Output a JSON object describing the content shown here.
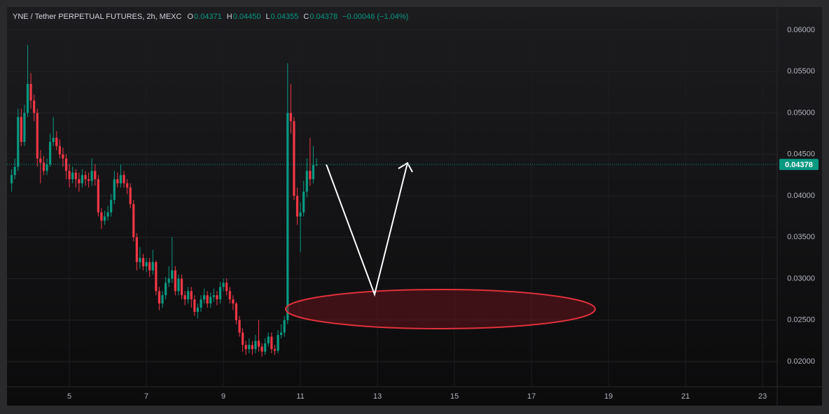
{
  "chart_data": {
    "type": "candlestick",
    "header": {
      "symbol": "YNE / Tether PERPETUAL FUTURES, 2h, MEXC",
      "fields": [
        {
          "key": "O",
          "text": "0.04371"
        },
        {
          "key": "H",
          "text": "0.04450"
        },
        {
          "key": "L",
          "text": "0.04355"
        },
        {
          "key": "C",
          "text": "0.04378"
        }
      ],
      "change": "−0.00046 (−1.04%)"
    },
    "up_color": "#089981",
    "down_color": "#f23645",
    "grid": true,
    "last_price": {
      "value": 0.04378,
      "label": "0.04378"
    },
    "xlim": [
      3.38,
      23.38
    ],
    "xticks": [
      5,
      7,
      9,
      11,
      13,
      15,
      17,
      19,
      21,
      23
    ],
    "ylim": [
      0.01696,
      0.06278
    ],
    "yticks": [
      {
        "value": 0.02,
        "label": "0.02000"
      },
      {
        "value": 0.025,
        "label": "0.02500"
      },
      {
        "value": 0.03,
        "label": "0.03000"
      },
      {
        "value": 0.035,
        "label": "0.03500"
      },
      {
        "value": 0.04,
        "label": "0.04000"
      },
      {
        "value": 0.045,
        "label": "0.04500"
      },
      {
        "value": 0.05,
        "label": "0.05000"
      },
      {
        "value": 0.055,
        "label": "0.05500"
      },
      {
        "value": 0.06,
        "label": "0.06000"
      }
    ],
    "x": [
      3.5,
      3.583,
      3.667,
      3.75,
      3.833,
      3.917,
      4,
      4.083,
      4.167,
      4.25,
      4.333,
      4.417,
      4.5,
      4.583,
      4.667,
      4.75,
      4.833,
      4.917,
      5,
      5.083,
      5.167,
      5.25,
      5.333,
      5.417,
      5.5,
      5.583,
      5.667,
      5.75,
      5.833,
      5.917,
      6,
      6.083,
      6.167,
      6.25,
      6.333,
      6.417,
      6.5,
      6.583,
      6.667,
      6.75,
      6.833,
      6.917,
      7,
      7.083,
      7.167,
      7.25,
      7.333,
      7.417,
      7.5,
      7.583,
      7.667,
      7.75,
      7.833,
      7.917,
      8,
      8.083,
      8.167,
      8.25,
      8.333,
      8.417,
      8.5,
      8.583,
      8.667,
      8.75,
      8.833,
      8.917,
      9,
      9.083,
      9.167,
      9.25,
      9.333,
      9.417,
      9.5,
      9.583,
      9.667,
      9.75,
      9.833,
      9.917,
      10,
      10.083,
      10.167,
      10.25,
      10.333,
      10.417,
      10.5,
      10.583,
      10.667,
      10.75,
      10.833,
      10.917,
      11,
      11.083,
      11.167,
      11.25,
      11.333,
      11.417
    ],
    "open": [
      0.0415,
      0.0425,
      0.0435,
      0.0495,
      0.0465,
      0.05,
      0.0535,
      0.0515,
      0.05,
      0.0445,
      0.044,
      0.043,
      0.0438,
      0.0465,
      0.047,
      0.046,
      0.045,
      0.0445,
      0.043,
      0.042,
      0.0428,
      0.042,
      0.0415,
      0.0425,
      0.042,
      0.0418,
      0.043,
      0.042,
      0.038,
      0.037,
      0.0375,
      0.038,
      0.0395,
      0.042,
      0.0415,
      0.0425,
      0.0415,
      0.041,
      0.039,
      0.035,
      0.032,
      0.0325,
      0.0315,
      0.032,
      0.031,
      0.032,
      0.0285,
      0.027,
      0.028,
      0.0295,
      0.03,
      0.031,
      0.0285,
      0.03,
      0.028,
      0.0275,
      0.0285,
      0.0275,
      0.026,
      0.0265,
      0.0275,
      0.028,
      0.027,
      0.0278,
      0.028,
      0.0275,
      0.029,
      0.0295,
      0.0285,
      0.0275,
      0.027,
      0.025,
      0.0235,
      0.022,
      0.0215,
      0.022,
      0.0215,
      0.0225,
      0.0218,
      0.0212,
      0.0222,
      0.023,
      0.0215,
      0.0213,
      0.0232,
      0.0235,
      0.025,
      0.05,
      0.049,
      0.04,
      0.0375,
      0.038,
      0.0405,
      0.043,
      0.042,
      0.04371
    ],
    "high": [
      0.0432,
      0.0445,
      0.0505,
      0.0505,
      0.051,
      0.0582,
      0.0548,
      0.0522,
      0.0505,
      0.0455,
      0.0448,
      0.0445,
      0.0475,
      0.0495,
      0.0478,
      0.0468,
      0.0458,
      0.045,
      0.0438,
      0.0435,
      0.0432,
      0.0428,
      0.0432,
      0.043,
      0.0428,
      0.0445,
      0.0438,
      0.0425,
      0.0385,
      0.0382,
      0.0388,
      0.0402,
      0.043,
      0.0428,
      0.0438,
      0.043,
      0.042,
      0.0415,
      0.0395,
      0.0355,
      0.0338,
      0.033,
      0.0325,
      0.0325,
      0.0335,
      0.0322,
      0.029,
      0.0285,
      0.0302,
      0.0315,
      0.035,
      0.0315,
      0.0305,
      0.0305,
      0.0285,
      0.029,
      0.029,
      0.028,
      0.027,
      0.028,
      0.0288,
      0.0285,
      0.0283,
      0.0288,
      0.0285,
      0.0296,
      0.03,
      0.03,
      0.029,
      0.028,
      0.0272,
      0.0255,
      0.024,
      0.0225,
      0.0228,
      0.0225,
      0.0232,
      0.025,
      0.0222,
      0.0228,
      0.0235,
      0.0235,
      0.022,
      0.0238,
      0.0245,
      0.0255,
      0.056,
      0.0535,
      0.0495,
      0.041,
      0.0392,
      0.0418,
      0.0445,
      0.047,
      0.046,
      0.0445
    ],
    "low": [
      0.0405,
      0.042,
      0.043,
      0.046,
      0.046,
      0.0495,
      0.0505,
      0.049,
      0.0435,
      0.0415,
      0.0425,
      0.0425,
      0.0435,
      0.046,
      0.0455,
      0.0445,
      0.0435,
      0.042,
      0.041,
      0.0415,
      0.041,
      0.0405,
      0.041,
      0.0412,
      0.041,
      0.0412,
      0.0412,
      0.0375,
      0.036,
      0.0365,
      0.037,
      0.0375,
      0.039,
      0.041,
      0.041,
      0.041,
      0.0402,
      0.0385,
      0.0345,
      0.031,
      0.0312,
      0.031,
      0.0308,
      0.0302,
      0.0305,
      0.028,
      0.0262,
      0.0265,
      0.0275,
      0.029,
      0.0295,
      0.028,
      0.028,
      0.0275,
      0.0268,
      0.027,
      0.0265,
      0.0255,
      0.0252,
      0.026,
      0.027,
      0.0265,
      0.0265,
      0.0272,
      0.0268,
      0.027,
      0.0285,
      0.028,
      0.027,
      0.0262,
      0.0245,
      0.023,
      0.0212,
      0.0208,
      0.021,
      0.0208,
      0.021,
      0.0212,
      0.0206,
      0.0208,
      0.0218,
      0.021,
      0.0208,
      0.021,
      0.0228,
      0.023,
      0.0245,
      0.0475,
      0.0395,
      0.0365,
      0.0332,
      0.0375,
      0.0398,
      0.0412,
      0.0415,
      0.04355
    ],
    "close": [
      0.0425,
      0.0435,
      0.0495,
      0.0465,
      0.05,
      0.0535,
      0.0515,
      0.05,
      0.0445,
      0.044,
      0.043,
      0.0438,
      0.0465,
      0.047,
      0.046,
      0.045,
      0.0445,
      0.043,
      0.042,
      0.0428,
      0.042,
      0.0415,
      0.0425,
      0.042,
      0.0418,
      0.043,
      0.042,
      0.038,
      0.037,
      0.0375,
      0.038,
      0.0395,
      0.042,
      0.0415,
      0.0425,
      0.0415,
      0.041,
      0.039,
      0.035,
      0.032,
      0.0325,
      0.0315,
      0.032,
      0.031,
      0.032,
      0.0285,
      0.027,
      0.028,
      0.0295,
      0.03,
      0.031,
      0.0285,
      0.03,
      0.028,
      0.0275,
      0.0285,
      0.0275,
      0.026,
      0.0265,
      0.0275,
      0.028,
      0.027,
      0.0278,
      0.028,
      0.0275,
      0.029,
      0.0295,
      0.0285,
      0.0275,
      0.027,
      0.025,
      0.0235,
      0.022,
      0.0215,
      0.022,
      0.0215,
      0.0225,
      0.0218,
      0.0212,
      0.0222,
      0.023,
      0.0215,
      0.0213,
      0.0232,
      0.0235,
      0.025,
      0.05,
      0.049,
      0.04,
      0.0375,
      0.038,
      0.0405,
      0.043,
      0.042,
      0.04371,
      0.04378
    ]
  }
}
